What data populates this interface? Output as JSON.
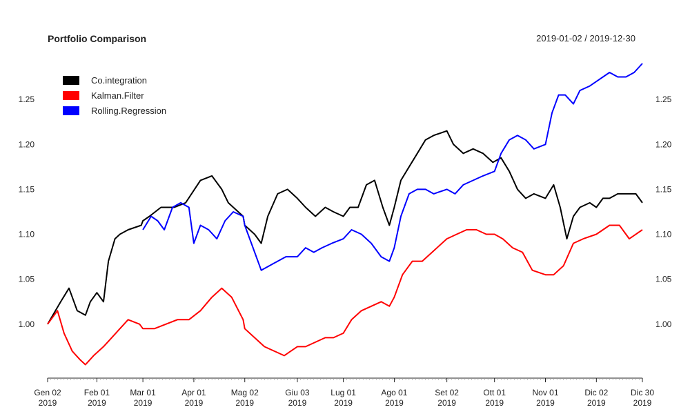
{
  "chart_data": {
    "type": "line",
    "title": "Portfolio Comparison",
    "date_range": "2019-01-02 / 2019-12-30",
    "ylim": [
      0.94,
      1.29
    ],
    "y_ticks": [
      "1.00",
      "1.05",
      "1.10",
      "1.15",
      "1.20",
      "1.25"
    ],
    "x_ticks": [
      {
        "date": "2019-01-02",
        "label1": "Gen 02",
        "label2": "2019"
      },
      {
        "date": "2019-02-01",
        "label1": "Feb 01",
        "label2": "2019"
      },
      {
        "date": "2019-03-01",
        "label1": "Mar 01",
        "label2": "2019"
      },
      {
        "date": "2019-04-01",
        "label1": "Apr 01",
        "label2": "2019"
      },
      {
        "date": "2019-05-02",
        "label1": "Mag 02",
        "label2": "2019"
      },
      {
        "date": "2019-06-03",
        "label1": "Giu 03",
        "label2": "2019"
      },
      {
        "date": "2019-07-01",
        "label1": "Lug 01",
        "label2": "2019"
      },
      {
        "date": "2019-08-01",
        "label1": "Ago 01",
        "label2": "2019"
      },
      {
        "date": "2019-09-02",
        "label1": "Set 02",
        "label2": "2019"
      },
      {
        "date": "2019-10-01",
        "label1": "Ott 01",
        "label2": "2019"
      },
      {
        "date": "2019-11-01",
        "label1": "Nov 01",
        "label2": "2019"
      },
      {
        "date": "2019-12-02",
        "label1": "Dic 02",
        "label2": "2019"
      },
      {
        "date": "2019-12-30",
        "label1": "Dic 30",
        "label2": "2019"
      }
    ],
    "grid": false,
    "legend_position": "top-left",
    "series": [
      {
        "name": "Co.integration",
        "color": "#000000",
        "x": [
          "2019-01-02",
          "2019-01-10",
          "2019-01-15",
          "2019-01-20",
          "2019-01-25",
          "2019-01-28",
          "2019-02-01",
          "2019-02-05",
          "2019-02-08",
          "2019-02-12",
          "2019-02-15",
          "2019-02-20",
          "2019-02-28",
          "2019-03-01",
          "2019-03-05",
          "2019-03-12",
          "2019-03-20",
          "2019-03-27",
          "2019-04-05",
          "2019-04-12",
          "2019-04-18",
          "2019-04-22",
          "2019-04-25",
          "2019-05-01",
          "2019-05-02",
          "2019-05-08",
          "2019-05-12",
          "2019-05-16",
          "2019-05-22",
          "2019-05-28",
          "2019-06-03",
          "2019-06-08",
          "2019-06-14",
          "2019-06-20",
          "2019-06-25",
          "2019-07-01",
          "2019-07-05",
          "2019-07-10",
          "2019-07-15",
          "2019-07-20",
          "2019-07-25",
          "2019-07-29",
          "2019-08-01",
          "2019-08-05",
          "2019-08-10",
          "2019-08-15",
          "2019-08-20",
          "2019-08-25",
          "2019-09-02",
          "2019-09-06",
          "2019-09-12",
          "2019-09-18",
          "2019-09-24",
          "2019-09-30",
          "2019-10-05",
          "2019-10-10",
          "2019-10-15",
          "2019-10-20",
          "2019-10-25",
          "2019-11-01",
          "2019-11-06",
          "2019-11-10",
          "2019-11-14",
          "2019-11-18",
          "2019-11-22",
          "2019-11-28",
          "2019-12-02",
          "2019-12-06",
          "2019-12-10",
          "2019-12-15",
          "2019-12-20",
          "2019-12-26",
          "2019-12-30"
        ],
        "y": [
          1.0,
          1.025,
          1.04,
          1.015,
          1.01,
          1.025,
          1.035,
          1.025,
          1.07,
          1.095,
          1.1,
          1.105,
          1.11,
          1.115,
          1.12,
          1.13,
          1.13,
          1.135,
          1.16,
          1.165,
          1.15,
          1.135,
          1.13,
          1.12,
          1.11,
          1.1,
          1.09,
          1.12,
          1.145,
          1.15,
          1.14,
          1.13,
          1.12,
          1.13,
          1.125,
          1.12,
          1.13,
          1.13,
          1.155,
          1.16,
          1.13,
          1.11,
          1.13,
          1.16,
          1.175,
          1.19,
          1.205,
          1.21,
          1.215,
          1.2,
          1.19,
          1.195,
          1.19,
          1.18,
          1.185,
          1.17,
          1.15,
          1.14,
          1.145,
          1.14,
          1.155,
          1.13,
          1.095,
          1.12,
          1.13,
          1.135,
          1.13,
          1.14,
          1.14,
          1.145,
          1.145,
          1.145,
          1.135
        ]
      },
      {
        "name": "Kalman.Filter",
        "color": "#ff0000",
        "x": [
          "2019-01-02",
          "2019-01-08",
          "2019-01-12",
          "2019-01-17",
          "2019-01-22",
          "2019-01-25",
          "2019-01-30",
          "2019-02-05",
          "2019-02-10",
          "2019-02-15",
          "2019-02-20",
          "2019-02-27",
          "2019-03-01",
          "2019-03-08",
          "2019-03-15",
          "2019-03-22",
          "2019-03-29",
          "2019-04-05",
          "2019-04-12",
          "2019-04-18",
          "2019-04-24",
          "2019-05-01",
          "2019-05-02",
          "2019-05-08",
          "2019-05-14",
          "2019-05-20",
          "2019-05-26",
          "2019-06-03",
          "2019-06-08",
          "2019-06-14",
          "2019-06-20",
          "2019-06-25",
          "2019-07-01",
          "2019-07-06",
          "2019-07-12",
          "2019-07-18",
          "2019-07-24",
          "2019-07-29",
          "2019-08-01",
          "2019-08-06",
          "2019-08-12",
          "2019-08-18",
          "2019-08-24",
          "2019-09-02",
          "2019-09-08",
          "2019-09-14",
          "2019-09-20",
          "2019-09-26",
          "2019-10-01",
          "2019-10-06",
          "2019-10-12",
          "2019-10-18",
          "2019-10-24",
          "2019-11-01",
          "2019-11-06",
          "2019-11-12",
          "2019-11-18",
          "2019-11-24",
          "2019-12-02",
          "2019-12-06",
          "2019-12-10",
          "2019-12-16",
          "2019-12-22",
          "2019-12-30"
        ],
        "y": [
          1.0,
          1.015,
          0.99,
          0.97,
          0.96,
          0.955,
          0.965,
          0.975,
          0.985,
          0.995,
          1.005,
          1.0,
          0.995,
          0.995,
          1.0,
          1.005,
          1.005,
          1.015,
          1.03,
          1.04,
          1.03,
          1.005,
          0.995,
          0.985,
          0.975,
          0.97,
          0.965,
          0.975,
          0.975,
          0.98,
          0.985,
          0.985,
          0.99,
          1.005,
          1.015,
          1.02,
          1.025,
          1.02,
          1.03,
          1.055,
          1.07,
          1.07,
          1.08,
          1.095,
          1.1,
          1.105,
          1.105,
          1.1,
          1.1,
          1.095,
          1.085,
          1.08,
          1.06,
          1.055,
          1.055,
          1.065,
          1.09,
          1.095,
          1.1,
          1.105,
          1.11,
          1.11,
          1.095,
          1.105
        ]
      },
      {
        "name": "Rolling.Regression",
        "color": "#0000ff",
        "x": [
          "2019-03-01",
          "2019-03-06",
          "2019-03-10",
          "2019-03-14",
          "2019-03-19",
          "2019-03-24",
          "2019-03-29",
          "2019-04-01",
          "2019-04-05",
          "2019-04-10",
          "2019-04-15",
          "2019-04-20",
          "2019-04-25",
          "2019-05-01",
          "2019-05-02",
          "2019-05-07",
          "2019-05-12",
          "2019-05-17",
          "2019-05-22",
          "2019-05-27",
          "2019-06-03",
          "2019-06-08",
          "2019-06-13",
          "2019-06-18",
          "2019-06-24",
          "2019-07-01",
          "2019-07-06",
          "2019-07-12",
          "2019-07-18",
          "2019-07-24",
          "2019-07-29",
          "2019-08-01",
          "2019-08-05",
          "2019-08-10",
          "2019-08-15",
          "2019-08-20",
          "2019-08-25",
          "2019-09-02",
          "2019-09-07",
          "2019-09-12",
          "2019-09-18",
          "2019-09-24",
          "2019-10-01",
          "2019-10-05",
          "2019-10-10",
          "2019-10-15",
          "2019-10-20",
          "2019-10-25",
          "2019-11-01",
          "2019-11-05",
          "2019-11-09",
          "2019-11-13",
          "2019-11-18",
          "2019-11-22",
          "2019-11-28",
          "2019-12-02",
          "2019-12-06",
          "2019-12-10",
          "2019-12-15",
          "2019-12-20",
          "2019-12-25",
          "2019-12-30"
        ],
        "y": [
          1.105,
          1.12,
          1.115,
          1.105,
          1.13,
          1.135,
          1.13,
          1.09,
          1.11,
          1.105,
          1.095,
          1.115,
          1.125,
          1.12,
          1.11,
          1.085,
          1.06,
          1.065,
          1.07,
          1.075,
          1.075,
          1.085,
          1.08,
          1.085,
          1.09,
          1.095,
          1.105,
          1.1,
          1.09,
          1.075,
          1.07,
          1.085,
          1.12,
          1.145,
          1.15,
          1.15,
          1.145,
          1.15,
          1.145,
          1.155,
          1.16,
          1.165,
          1.17,
          1.19,
          1.205,
          1.21,
          1.205,
          1.195,
          1.2,
          1.235,
          1.255,
          1.255,
          1.245,
          1.26,
          1.265,
          1.27,
          1.275,
          1.28,
          1.275,
          1.275,
          1.28,
          1.29
        ]
      }
    ]
  }
}
